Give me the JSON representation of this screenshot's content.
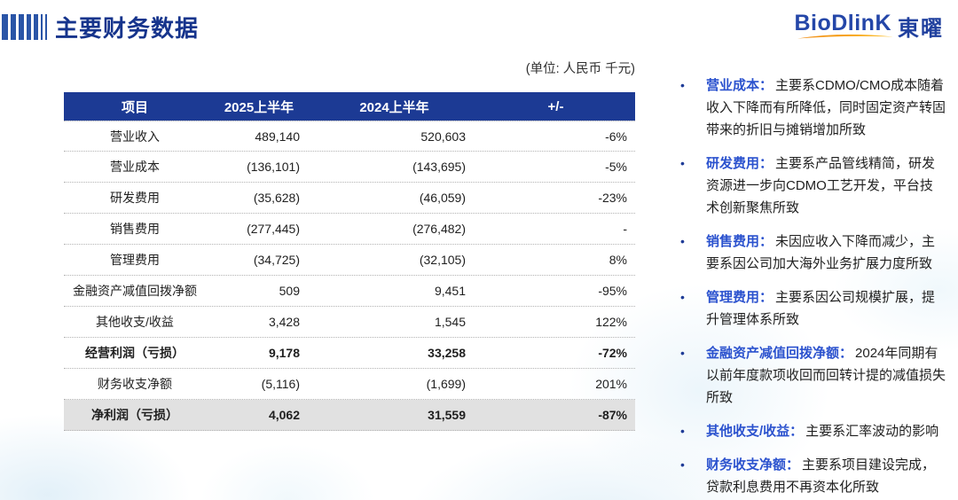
{
  "header": {
    "title": "主要财务数据",
    "logo": {
      "brand": "BioDlinK",
      "brand_cjk": "東曜"
    }
  },
  "unit_label": "(单位: 人民币 千元)",
  "table": {
    "columns": [
      "项目",
      "2025上半年",
      "2024上半年",
      "+/-"
    ],
    "rows": [
      {
        "item": "营业收入",
        "v2025": "489,140",
        "v2024": "520,603",
        "change": "-6%",
        "bold": false,
        "highlight": false
      },
      {
        "item": "营业成本",
        "v2025": "(136,101)",
        "v2024": "(143,695)",
        "change": "-5%",
        "bold": false,
        "highlight": false
      },
      {
        "item": "研发费用",
        "v2025": "(35,628)",
        "v2024": "(46,059)",
        "change": "-23%",
        "bold": false,
        "highlight": false
      },
      {
        "item": "销售费用",
        "v2025": "(277,445)",
        "v2024": "(276,482)",
        "change": "-",
        "bold": false,
        "highlight": false
      },
      {
        "item": "管理费用",
        "v2025": "(34,725)",
        "v2024": "(32,105)",
        "change": "8%",
        "bold": false,
        "highlight": false
      },
      {
        "item": "金融资产减值回拨净额",
        "v2025": "509",
        "v2024": "9,451",
        "change": "-95%",
        "bold": false,
        "highlight": false
      },
      {
        "item": "其他收支/收益",
        "v2025": "3,428",
        "v2024": "1,545",
        "change": "122%",
        "bold": false,
        "highlight": false
      },
      {
        "item": "经营利润（亏损）",
        "v2025": "9,178",
        "v2024": "33,258",
        "change": "-72%",
        "bold": true,
        "highlight": false
      },
      {
        "item": "财务收支净额",
        "v2025": "(5,116)",
        "v2024": "(1,699)",
        "change": "201%",
        "bold": false,
        "highlight": false
      },
      {
        "item": "净利润（亏损）",
        "v2025": "4,062",
        "v2024": "31,559",
        "change": "-87%",
        "bold": true,
        "highlight": true
      }
    ]
  },
  "notes": [
    {
      "term": "营业成本：",
      "text": "主要系CDMO/CMO成本随着收入下降而有所降低，同时固定资产转固带来的折旧与摊销增加所致"
    },
    {
      "term": "研发费用：",
      "text": "主要系产品管线精简，研发资源进一步向CDMO工艺开发，平台技术创新聚焦所致"
    },
    {
      "term": "销售费用：",
      "text": "未因应收入下降而减少，主要系因公司加大海外业务扩展力度所致"
    },
    {
      "term": "管理费用：",
      "text": "主要系因公司规模扩展，提升管理体系所致"
    },
    {
      "term": "金融资产减值回拨净额：",
      "text": "2024年同期有以前年度款项收回而回转计提的减值损失所致"
    },
    {
      "term": "其他收支/收益：",
      "text": "主要系汇率波动的影响"
    },
    {
      "term": "财务收支净额：",
      "text": "主要系项目建设完成，贷款利息费用不再资本化所致"
    }
  ],
  "colors": {
    "title_blue": "#16348c",
    "table_header_bg": "#1c3a94",
    "highlight_row_bg": "#e1e1e1",
    "note_term_blue": "#2b52ce",
    "logo_blue": "#2446a8",
    "swoosh_orange": "#f7a01c"
  }
}
